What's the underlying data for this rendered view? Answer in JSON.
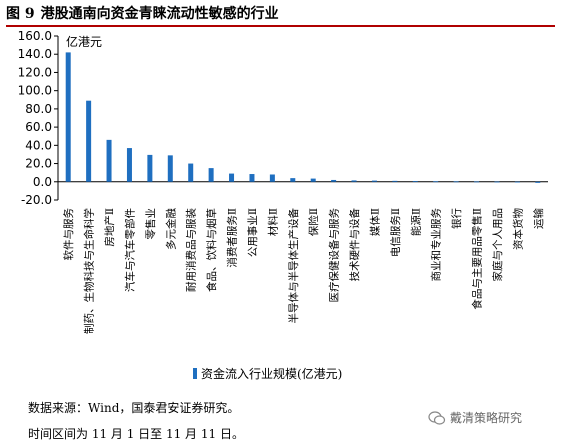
{
  "figure": {
    "title_num": "图 9",
    "title": "港股通南向资金青睐流动性敏感的行业"
  },
  "chart_data": {
    "type": "bar",
    "unit_label": "亿港元",
    "ylim": [
      -20,
      160
    ],
    "yticks": [
      "160.0",
      "140.0",
      "120.0",
      "100.0",
      "80.0",
      "60.0",
      "40.0",
      "20.0",
      "0.0",
      "-20.0"
    ],
    "ytick_values": [
      160,
      140,
      120,
      100,
      80,
      60,
      40,
      20,
      0,
      -20
    ],
    "categories": [
      "软件与服务",
      "制药、生物科技与生命科学",
      "房地产Ⅱ",
      "汽车与汽车零部件",
      "零售业",
      "多元金融",
      "耐用消费品与服装",
      "食品、饮料与烟草",
      "消费者服务Ⅱ",
      "公用事业Ⅱ",
      "材料Ⅱ",
      "半导体与半导体生产设备",
      "保险Ⅱ",
      "医疗保健设备与服务",
      "技术硬件与设备",
      "媒体Ⅱ",
      "电信服务Ⅱ",
      "能源Ⅱ",
      "商业和专业服务",
      "银行",
      "食品与主要用品零售Ⅱ",
      "家庭与个人用品",
      "资本货物",
      "运输"
    ],
    "series": [
      {
        "name": "资金流入行业规模(亿港元)",
        "color": "#1f6fc0",
        "values": [
          142,
          89,
          46,
          37,
          29.5,
          29,
          20,
          15,
          9,
          8.5,
          8,
          4,
          3.5,
          2,
          1.5,
          1.3,
          1,
          0.8,
          0.5,
          0.4,
          0.3,
          0.2,
          0.1,
          -1.2
        ]
      }
    ],
    "grid": false,
    "legend_position": "bottom"
  },
  "footer": {
    "source": "数据来源：Wind，国泰君安证券研究。",
    "period": "时间区间为 11 月 1 日至 11 月 11 日。",
    "watermark": "戴清策略研究"
  }
}
